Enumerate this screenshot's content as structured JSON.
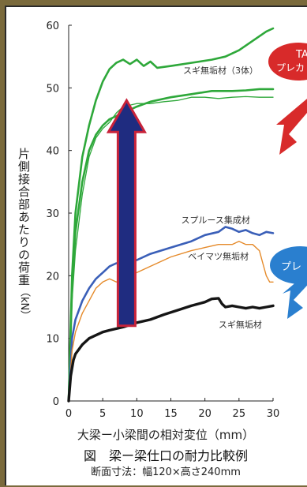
{
  "chart_data": {
    "type": "line",
    "title": "",
    "xlabel": "大梁ー小梁間の相対変位（mm）",
    "ylabel": "片側接合部あたりの荷重",
    "ylabel_unit": "（kN）",
    "xlim": [
      0,
      30
    ],
    "ylim": [
      0,
      60
    ],
    "x_ticks": [
      0,
      5,
      10,
      15,
      20,
      25,
      30
    ],
    "y_ticks": [
      0,
      10,
      20,
      30,
      40,
      50,
      60
    ],
    "grid": false,
    "series": [
      {
        "name": "スギ無垢材（3体）",
        "color": "#2ea83a",
        "width": 2.6,
        "points": [
          [
            0,
            0
          ],
          [
            0.5,
            20
          ],
          [
            1,
            30
          ],
          [
            2,
            39
          ],
          [
            3,
            44
          ],
          [
            4,
            48
          ],
          [
            5,
            51
          ],
          [
            6,
            53
          ],
          [
            7,
            54
          ],
          [
            8,
            54.5
          ],
          [
            9,
            53.8
          ],
          [
            10,
            54.5
          ],
          [
            11,
            53.5
          ],
          [
            12,
            54.2
          ],
          [
            13,
            53.2
          ],
          [
            15,
            53.5
          ],
          [
            18,
            54
          ],
          [
            21,
            54.5
          ],
          [
            23,
            55
          ],
          [
            25,
            56
          ],
          [
            27,
            57.5
          ],
          [
            29,
            59
          ],
          [
            30,
            59.5
          ]
        ]
      },
      {
        "name": "",
        "color": "#2ea83a",
        "width": 2.6,
        "points": [
          [
            0,
            0
          ],
          [
            0.5,
            18
          ],
          [
            1,
            27
          ],
          [
            2,
            35
          ],
          [
            3,
            40
          ],
          [
            4,
            42.5
          ],
          [
            5,
            44
          ],
          [
            6,
            45
          ],
          [
            7,
            45.5
          ],
          [
            8,
            46
          ],
          [
            10,
            47
          ],
          [
            12,
            47.8
          ],
          [
            15,
            48.5
          ],
          [
            18,
            49
          ],
          [
            21,
            49.5
          ],
          [
            24,
            49.5
          ],
          [
            26,
            49.6
          ],
          [
            28,
            49.8
          ],
          [
            30,
            49.8
          ]
        ]
      },
      {
        "name": "",
        "color": "#2ea83a",
        "width": 1.3,
        "points": [
          [
            0,
            0
          ],
          [
            0.5,
            16
          ],
          [
            1,
            24
          ],
          [
            2,
            33
          ],
          [
            3,
            39
          ],
          [
            4,
            42
          ],
          [
            5,
            43.5
          ],
          [
            6,
            44.5
          ],
          [
            7,
            46
          ],
          [
            8,
            47
          ],
          [
            10,
            47.5
          ],
          [
            12,
            47.5
          ],
          [
            14,
            47.8
          ],
          [
            16,
            48
          ],
          [
            18,
            48.5
          ],
          [
            20,
            48.5
          ],
          [
            22,
            48.3
          ],
          [
            24,
            48.5
          ],
          [
            26,
            48.6
          ],
          [
            28,
            48.5
          ],
          [
            30,
            48.5
          ]
        ]
      },
      {
        "name": "スプルース集成材",
        "color": "#3a5fb8",
        "width": 2.6,
        "points": [
          [
            0,
            0
          ],
          [
            0.5,
            10
          ],
          [
            1,
            13
          ],
          [
            2,
            16
          ],
          [
            3,
            18
          ],
          [
            4,
            19.5
          ],
          [
            5,
            20.5
          ],
          [
            6,
            21.5
          ],
          [
            7,
            22
          ],
          [
            8,
            22
          ],
          [
            10,
            22.5
          ],
          [
            12,
            23.5
          ],
          [
            15,
            24.5
          ],
          [
            18,
            25.5
          ],
          [
            20,
            26.5
          ],
          [
            22,
            27
          ],
          [
            23,
            27.8
          ],
          [
            24,
            27.5
          ],
          [
            25,
            27
          ],
          [
            26,
            27.3
          ],
          [
            27,
            26.8
          ],
          [
            28,
            26.5
          ],
          [
            29,
            27
          ],
          [
            30,
            26.8
          ]
        ]
      },
      {
        "name": "ベイマツ無垢材",
        "color": "#e58a2a",
        "width": 1.4,
        "points": [
          [
            0,
            0
          ],
          [
            0.5,
            8
          ],
          [
            1,
            11
          ],
          [
            2,
            14
          ],
          [
            3,
            16
          ],
          [
            4,
            18
          ],
          [
            5,
            19
          ],
          [
            6,
            19.5
          ],
          [
            7,
            19
          ],
          [
            8,
            19.5
          ],
          [
            10,
            20.5
          ],
          [
            12,
            21.5
          ],
          [
            15,
            23
          ],
          [
            18,
            24
          ],
          [
            20,
            24.5
          ],
          [
            22,
            25
          ],
          [
            24,
            25
          ],
          [
            25,
            25.5
          ],
          [
            26,
            25
          ],
          [
            27,
            25
          ],
          [
            28,
            24
          ],
          [
            28.5,
            22
          ],
          [
            29,
            20
          ],
          [
            29.5,
            19
          ],
          [
            30,
            19
          ]
        ]
      },
      {
        "name": "スギ無垢材",
        "color": "#151515",
        "width": 3.4,
        "points": [
          [
            0,
            0
          ],
          [
            0.3,
            4
          ],
          [
            0.7,
            6.5
          ],
          [
            1,
            7.5
          ],
          [
            2,
            9
          ],
          [
            3,
            10
          ],
          [
            4,
            10.5
          ],
          [
            5,
            11
          ],
          [
            6,
            11.3
          ],
          [
            8,
            11.8
          ],
          [
            10,
            12.5
          ],
          [
            12,
            13
          ],
          [
            14,
            13.8
          ],
          [
            16,
            14.5
          ],
          [
            18,
            15.2
          ],
          [
            20,
            15.8
          ],
          [
            21,
            16.3
          ],
          [
            22,
            16.4
          ],
          [
            22.5,
            15.5
          ],
          [
            23,
            15
          ],
          [
            24,
            15.2
          ],
          [
            25,
            15
          ],
          [
            26,
            14.8
          ],
          [
            27,
            15
          ],
          [
            28,
            14.8
          ],
          [
            29,
            15
          ],
          [
            30,
            15.2
          ]
        ]
      }
    ],
    "annotations": [
      {
        "text": "スギ無垢材（3体）",
        "x": 16.8,
        "y": 52.3
      },
      {
        "text": "スプルース集成材",
        "x": 16.5,
        "y": 28.4
      },
      {
        "text": "ベイマツ無垢材",
        "x": 17.5,
        "y": 22.6
      },
      {
        "text": "スギ無垢材",
        "x": 22,
        "y": 11.7
      }
    ],
    "callouts": [
      {
        "text": "TA",
        "subtext": "プレカ",
        "color": "#d82a2a"
      },
      {
        "text": "",
        "subtext": "プレ",
        "color": "#2a7fcf"
      }
    ],
    "big_arrow": {
      "x": 8.5,
      "y_from": 12,
      "y_to": 48,
      "fill": "#1f2c80",
      "outline": "#c8233a"
    }
  },
  "figure": {
    "caption": "図　梁ー梁仕口の耐力比較例",
    "note": "断面寸法：幅120×高さ240mm"
  }
}
